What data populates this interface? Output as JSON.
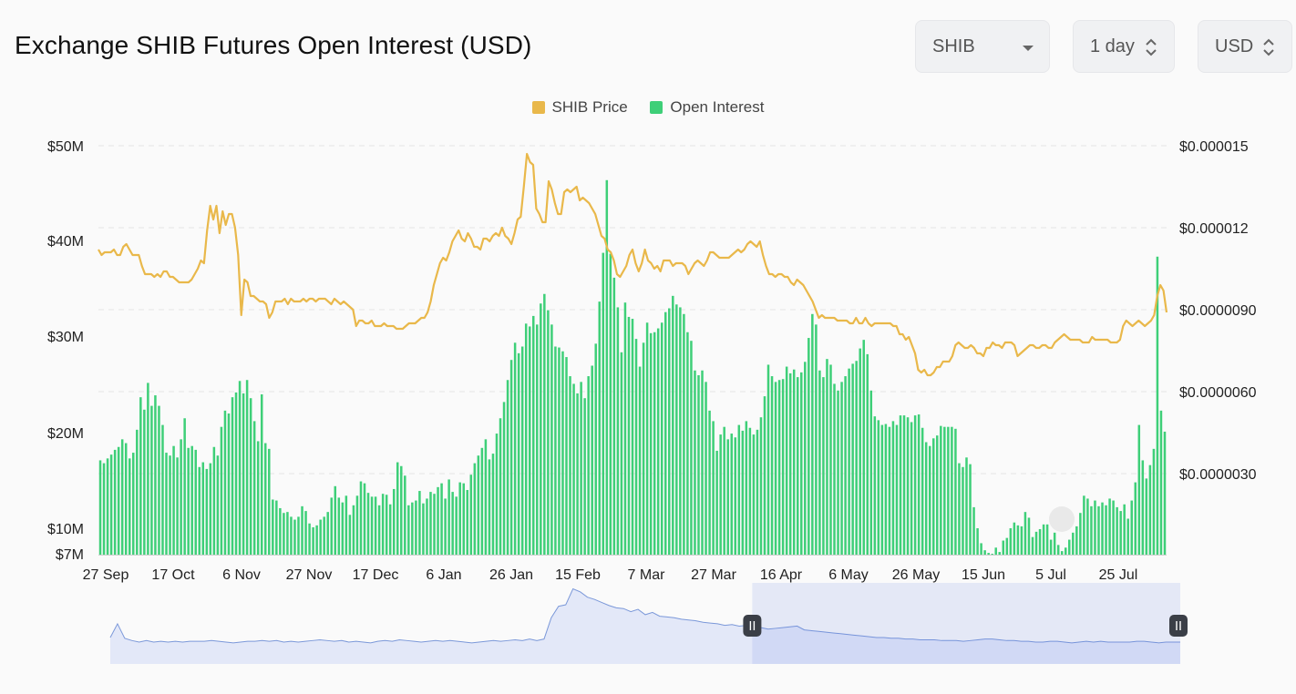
{
  "header": {
    "title": "Exchange SHIB Futures Open Interest (USD)",
    "coin_select": "SHIB",
    "interval_select": "1 day",
    "currency_select": "USD"
  },
  "colors": {
    "price": "#e9b84a",
    "open_interest": "#3ecf78",
    "navigator_line": "#7b98d9",
    "navigator_fill": "#e3e8f8"
  },
  "chart_data": {
    "type": "bar",
    "legend": [
      "SHIB Price",
      "Open Interest"
    ],
    "legend_position": "top-center",
    "x_ticks": [
      "27 Sep",
      "17 Oct",
      "6 Nov",
      "27 Nov",
      "17 Dec",
      "6 Jan",
      "26 Jan",
      "15 Feb",
      "7 Mar",
      "27 Mar",
      "16 Apr",
      "6 May",
      "26 May",
      "15 Jun",
      "5 Jul",
      "25 Jul"
    ],
    "y_left_ticks": [
      "$50M",
      "$40M",
      "$30M",
      "$20M",
      "$10M",
      "$7M"
    ],
    "y_left_range": [
      7000000,
      50000000
    ],
    "y_right_ticks": [
      "$0.000015",
      "$0.000012",
      "$0.0000090",
      "$0.0000060",
      "$0.0000030"
    ],
    "y_right_range": [
      0,
      1.5e-05
    ],
    "grid": "horizontal dashed",
    "series": [
      {
        "name": "Open Interest",
        "type": "bar",
        "axis": "left",
        "start_date": "2022-09-27",
        "values": [
          17.1,
          16.8,
          17.3,
          17.7,
          18.2,
          18.5,
          19.3,
          18.9,
          17.3,
          17.9,
          20.3,
          23.7,
          22.4,
          25.2,
          22.8,
          23.9,
          22.8,
          20.8,
          17.9,
          17.6,
          18.6,
          17.4,
          19.3,
          21.5,
          18.4,
          18.6,
          18.2,
          16.4,
          16.9,
          16.2,
          16.8,
          18.5,
          17.6,
          20.6,
          22.3,
          22.0,
          23.7,
          24.2,
          25.4,
          24.1,
          25.5,
          23.6,
          21.2,
          19.1,
          24.0,
          18.9,
          18.3,
          13.0,
          12.9,
          12.1,
          11.6,
          11.7,
          11.2,
          10.9,
          11.2,
          12.3,
          11.8,
          10.5,
          10.1,
          10.3,
          10.9,
          11.2,
          11.7,
          13.2,
          14.4,
          13.2,
          12.7,
          13.4,
          11.4,
          12.4,
          13.4,
          14.9,
          14.7,
          13.7,
          13.3,
          13.3,
          12.4,
          13.6,
          13.5,
          12.5,
          14.1,
          16.9,
          16.5,
          15.5,
          12.4,
          12.7,
          12.9,
          13.9,
          12.6,
          13.1,
          13.8,
          13.6,
          14.3,
          14.7,
          13.1,
          15.1,
          13.8,
          13.3,
          14.8,
          14.7,
          14.0,
          15.6,
          16.8,
          17.6,
          18.4,
          19.3,
          17.2,
          17.8,
          19.9,
          21.5,
          23.2,
          25.5,
          27.6,
          29.4,
          28.3,
          29.0,
          31.4,
          31.1,
          32.2,
          31.3,
          33.5,
          34.5,
          32.8,
          31.3,
          29.0,
          28.9,
          28.5,
          27.9,
          25.9,
          25.1,
          24.1,
          25.3,
          23.6,
          25.9,
          27.0,
          29.3,
          33.7,
          38.8,
          46.4,
          38.7,
          36.2,
          33.1,
          28.4,
          33.6,
          32.1,
          31.9,
          29.8,
          26.9,
          29.4,
          31.5,
          30.4,
          30.5,
          30.9,
          31.5,
          32.6,
          33.0,
          34.3,
          33.4,
          33.1,
          32.4,
          30.5,
          29.6,
          26.5,
          26.0,
          26.5,
          25.3,
          22.3,
          21.2,
          18.1,
          19.8,
          20.6,
          19.3,
          19.9,
          19.5,
          20.8,
          20.2,
          21.2,
          20.5,
          19.8,
          20.3,
          21.6,
          23.8,
          27.1,
          25.9,
          25.3,
          25.5,
          25.6,
          26.9,
          26.2,
          26.6,
          25.8,
          26.3,
          27.4,
          29.9,
          32.4,
          31.3,
          26.5,
          25.8,
          27.7,
          27.1,
          25.1,
          24.4,
          25.3,
          25.9,
          26.7,
          27.2,
          27.5,
          28.8,
          29.7,
          28.2,
          24.4,
          21.7,
          21.3,
          20.8,
          20.9,
          20.6,
          21.2,
          20.8,
          21.8,
          21.8,
          21.6,
          21.1,
          21.8,
          21.9,
          20.5,
          19.0,
          18.6,
          19.4,
          19.7,
          20.7,
          20.6,
          20.6,
          20.6,
          20.4,
          16.8,
          16.4,
          17.4,
          16.7,
          12.2,
          10.0,
          8.3,
          7.5,
          7.2,
          7.1,
          7.8,
          7.3,
          8.6,
          8.9,
          10.0,
          10.6,
          10.3,
          10.2,
          11.7,
          11.1,
          9.0,
          9.6,
          9.9,
          10.4,
          10.4,
          8.7,
          9.5,
          8.1,
          7.4,
          7.8,
          8.7,
          9.5,
          10.2,
          11.6,
          13.4,
          13.1,
          12.3,
          12.9,
          12.3,
          12.7,
          12.4,
          13.1,
          12.9,
          12.2,
          11.8,
          12.5,
          11.0,
          12.9,
          14.8,
          20.8,
          17.1,
          15.2,
          16.6,
          18.3,
          38.4,
          22.3,
          20.1
        ]
      },
      {
        "name": "SHIB Price",
        "type": "line",
        "axis": "right",
        "start_date": "2022-09-27",
        "values": [
          1.12e-05,
          1.1e-05,
          1.11e-05,
          1.11e-05,
          1.11e-05,
          1.12e-05,
          1.1e-05,
          1.1e-05,
          1.13e-05,
          1.14e-05,
          1.12e-05,
          1.1e-05,
          1.1e-05,
          1.1e-05,
          1.06e-05,
          1.03e-05,
          1.03e-05,
          1.03e-05,
          1.02e-05,
          1.03e-05,
          1.02e-05,
          1.04e-05,
          1.04e-05,
          1.02e-05,
          1.02e-05,
          1.01e-05,
          1e-05,
          1e-05,
          1e-05,
          1e-05,
          1.01e-05,
          1.03e-05,
          1.05e-05,
          1.08e-05,
          1.07e-05,
          1.19e-05,
          1.28e-05,
          1.23e-05,
          1.28e-05,
          1.18e-05,
          1.26e-05,
          1.21e-05,
          1.25e-05,
          1.25e-05,
          1.2e-05,
          1.1e-05,
          8.8e-06,
          1.01e-05,
          1e-05,
          9.5e-06,
          9.5e-06,
          9.4e-06,
          9.3e-06,
          9.3e-06,
          9.2e-06,
          8.7e-06,
          8.9e-06,
          9.3e-06,
          9.3e-06,
          9.3e-06,
          9.4e-06,
          9.2e-06,
          9.4e-06,
          9.3e-06,
          9.3e-06,
          9.3e-06,
          9.4e-06,
          9.3e-06,
          9.4e-06,
          9.4e-06,
          9.3e-06,
          9.4e-06,
          9.4e-06,
          9.4e-06,
          9.3e-06,
          9.2e-06,
          9.4e-06,
          9.3e-06,
          9.2e-06,
          9.3e-06,
          9.2e-06,
          9.1e-06,
          9e-06,
          8.4e-06,
          8.6e-06,
          8.6e-06,
          8.5e-06,
          8.5e-06,
          8.6e-06,
          8.4e-06,
          8.4e-06,
          8.4e-06,
          8.5e-06,
          8.4e-06,
          8.4e-06,
          8.4e-06,
          8.3e-06,
          8.3e-06,
          8.3e-06,
          8.4e-06,
          8.5e-06,
          8.5e-06,
          8.5e-06,
          8.6e-06,
          8.7e-06,
          8.7e-06,
          8.9e-06,
          9.3e-06,
          9.9e-06,
          1.03e-05,
          1.07e-05,
          1.09e-05,
          1.08e-05,
          1.11e-05,
          1.15e-05,
          1.17e-05,
          1.19e-05,
          1.16e-05,
          1.15e-05,
          1.18e-05,
          1.16e-05,
          1.13e-05,
          1.13e-05,
          1.12e-05,
          1.16e-05,
          1.16e-05,
          1.15e-05,
          1.17e-05,
          1.18e-05,
          1.17e-05,
          1.2e-05,
          1.17e-05,
          1.16e-05,
          1.14e-05,
          1.18e-05,
          1.23e-05,
          1.24e-05,
          1.35e-05,
          1.47e-05,
          1.44e-05,
          1.43e-05,
          1.27e-05,
          1.25e-05,
          1.22e-05,
          1.22e-05,
          1.37e-05,
          1.34e-05,
          1.29e-05,
          1.25e-05,
          1.25e-05,
          1.33e-05,
          1.34e-05,
          1.33e-05,
          1.34e-05,
          1.35e-05,
          1.3e-05,
          1.31e-05,
          1.3e-05,
          1.29e-05,
          1.27e-05,
          1.25e-05,
          1.21e-05,
          1.17e-05,
          1.16e-05,
          1.12e-05,
          1.11e-05,
          1.08e-05,
          1.03e-05,
          1.02e-05,
          1.04e-05,
          1.06e-05,
          1.1e-05,
          1.12e-05,
          1.07e-05,
          1.04e-05,
          1.07e-05,
          1.12e-05,
          1.08e-05,
          1.07e-05,
          1.05e-05,
          1.06e-05,
          1.04e-05,
          1.08e-05,
          1.08e-05,
          1.08e-05,
          1.06e-05,
          1.07e-05,
          1.07e-05,
          1.07e-05,
          1.06e-05,
          1.03e-05,
          1.05e-05,
          1.07e-05,
          1.08e-05,
          1.07e-05,
          1.06e-05,
          1.08e-05,
          1.11e-05,
          1.11e-05,
          1.1e-05,
          1.09e-05,
          1.09e-05,
          1.09e-05,
          1.09e-05,
          1.1e-05,
          1.11e-05,
          1.12e-05,
          1.11e-05,
          1.12e-05,
          1.14e-05,
          1.15e-05,
          1.14e-05,
          1.13e-05,
          1.15e-05,
          1.1e-05,
          1.06e-05,
          1.03e-05,
          1.03e-05,
          1.02e-05,
          1.03e-05,
          1.03e-05,
          1.02e-05,
          1.02e-05,
          1e-05,
          9.9e-06,
          1.01e-05,
          1e-05,
          9.9e-06,
          9.7e-06,
          9.5e-06,
          9.3e-06,
          9e-06,
          8.7e-06,
          8.8e-06,
          8.7e-06,
          8.7e-06,
          8.7e-06,
          8.7e-06,
          8.6e-06,
          8.6e-06,
          8.6e-06,
          8.6e-06,
          8.5e-06,
          8.5e-06,
          8.7e-06,
          8.5e-06,
          8.5e-06,
          8.7e-06,
          8.5e-06,
          8.4e-06,
          8.5e-06,
          8.5e-06,
          8.5e-06,
          8.5e-06,
          8.5e-06,
          8.5e-06,
          8.4e-06,
          8.4e-06,
          8.1e-06,
          8.1e-06,
          7.9e-06,
          8e-06,
          7.7e-06,
          7.4e-06,
          6.8e-06,
          6.7e-06,
          6.8e-06,
          6.6e-06,
          6.6e-06,
          6.7e-06,
          6.9e-06,
          6.9e-06,
          7.1e-06,
          7.1e-06,
          7.1e-06,
          7.3e-06,
          7.7e-06,
          7.8e-06,
          7.7e-06,
          7.6e-06,
          7.6e-06,
          7.7e-06,
          7.6e-06,
          7.4e-06,
          7.4e-06,
          7.3e-06,
          7.6e-06,
          7.6e-06,
          7.8e-06,
          7.7e-06,
          7.7e-06,
          7.6e-06,
          7.8e-06,
          7.8e-06,
          7.8e-06,
          7.7e-06,
          7.3e-06,
          7.4e-06,
          7.5e-06,
          7.6e-06,
          7.7e-06,
          7.7e-06,
          7.6e-06,
          7.6e-06,
          7.7e-06,
          7.7e-06,
          7.6e-06,
          7.6e-06,
          7.8e-06,
          7.9e-06,
          8e-06,
          8.1e-06,
          8e-06,
          7.9e-06,
          7.9e-06,
          7.9e-06,
          7.9e-06,
          7.8e-06,
          7.8e-06,
          7.8e-06,
          8e-06,
          7.9e-06,
          7.9e-06,
          7.9e-06,
          7.9e-06,
          7.9e-06,
          7.8e-06,
          7.8e-06,
          7.8e-06,
          7.9e-06,
          8.4e-06,
          8.6e-06,
          8.5e-06,
          8.4e-06,
          8.5e-06,
          8.6e-06,
          8.5e-06,
          8.4e-06,
          8.5e-06,
          8.6e-06,
          8.8e-06,
          9.5e-06,
          9.9e-06,
          9.7e-06,
          8.9e-06
        ]
      }
    ],
    "navigator": {
      "values": [
        18,
        36,
        17,
        14,
        12,
        14,
        12,
        13,
        12,
        13,
        12,
        13,
        13,
        13,
        14,
        13,
        12,
        11,
        12,
        13,
        13,
        14,
        13,
        14,
        12,
        13,
        12,
        13,
        14,
        15,
        14,
        13,
        14,
        12,
        13,
        12,
        11,
        13,
        14,
        13,
        15,
        14,
        13,
        12,
        13,
        14,
        13,
        14,
        13,
        12,
        11,
        12,
        13,
        14,
        13,
        14,
        15,
        14,
        16,
        14,
        16,
        44,
        59,
        61,
        82,
        78,
        71,
        68,
        64,
        60,
        57,
        56,
        52,
        55,
        48,
        51,
        46,
        45,
        44,
        42,
        41,
        40,
        38,
        37,
        36,
        34,
        35,
        33,
        34,
        32,
        31,
        29,
        30,
        31,
        32,
        33,
        28,
        27,
        26,
        25,
        24,
        23,
        22,
        21,
        20,
        19,
        18,
        18,
        17,
        17,
        16,
        16,
        15,
        15,
        15,
        14,
        14,
        14,
        13,
        14,
        15,
        16,
        16,
        15,
        14,
        14,
        13,
        13,
        12,
        12,
        13,
        13,
        12,
        11,
        12,
        13,
        12,
        13,
        12,
        12,
        12,
        12,
        13,
        13,
        12,
        11,
        12,
        12,
        12
      ],
      "selection": [
        0.6,
        1.0
      ]
    }
  }
}
